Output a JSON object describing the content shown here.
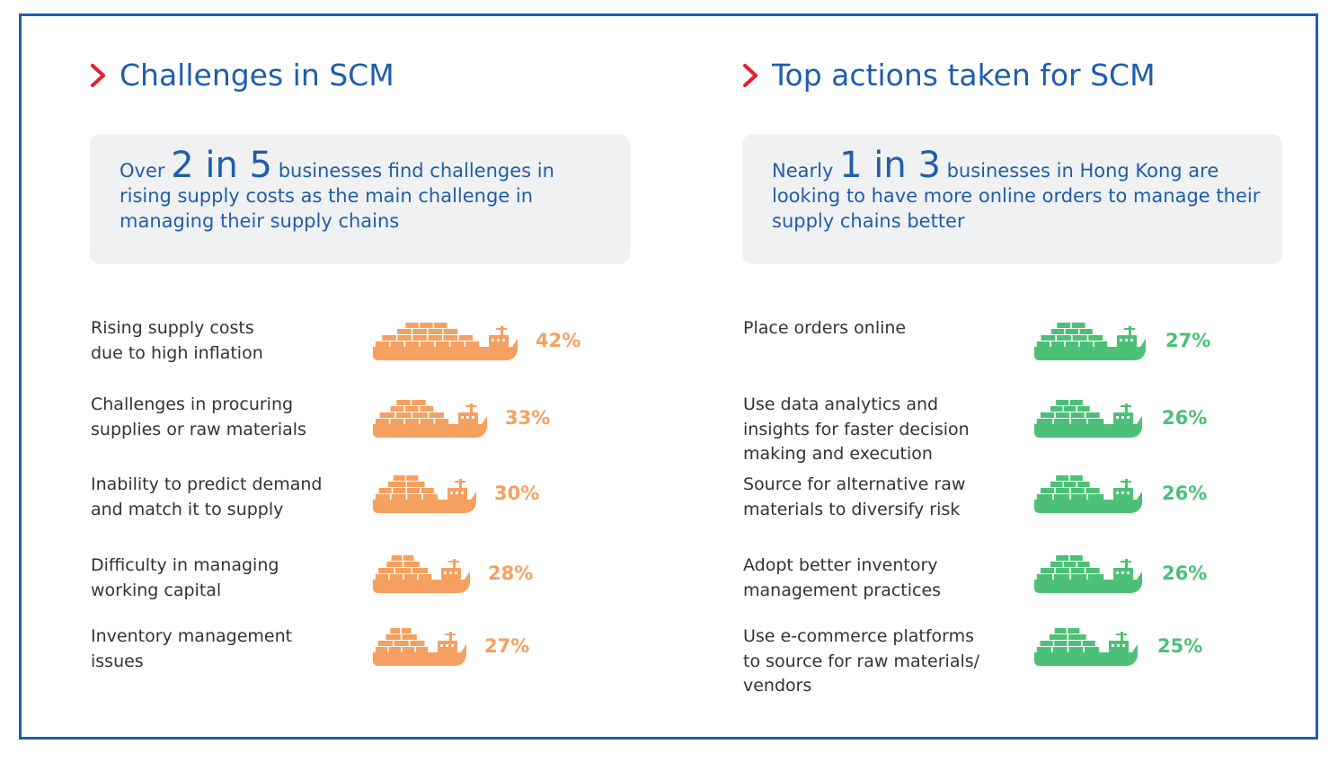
{
  "colors": {
    "accent": "#1e5eac",
    "chevron": "#e0202e",
    "orange": "#f5a060",
    "green": "#4cc077",
    "callout_bg": "#f0f1f2"
  },
  "left": {
    "title": "Challenges in SCM",
    "callout": {
      "pre": "Over",
      "big": "2 in 5",
      "post": "businesses find challenges in rising supply costs as the main challenge in managing their supply chains"
    }
  },
  "right": {
    "title": "Top actions taken for SCM",
    "callout": {
      "pre": "Nearly",
      "big": "1 in 3",
      "post": "businesses in Hong Kong are looking to have more online orders to manage their supply chains better"
    }
  },
  "chart_data": [
    {
      "type": "bar",
      "title": "Challenges in SCM",
      "categories": [
        [
          "Rising supply costs",
          "due to high inflation"
        ],
        [
          "Challenges in procuring",
          "supplies or raw materials"
        ],
        [
          "Inability to predict demand",
          "and match it to supply"
        ],
        [
          "Difficulty in managing",
          "working capital"
        ],
        [
          "Inventory management",
          "issues"
        ]
      ],
      "values": [
        42,
        33,
        30,
        28,
        27
      ],
      "value_labels": [
        "42%",
        "33%",
        "30%",
        "28%",
        "27%"
      ],
      "unit": "%",
      "color": "#f5a060"
    },
    {
      "type": "bar",
      "title": "Top actions taken for SCM",
      "categories": [
        [
          "Place orders online"
        ],
        [
          "Use data analytics and",
          "insights for faster decision",
          "making and execution"
        ],
        [
          "Source for alternative raw",
          "materials to diversify risk"
        ],
        [
          "Adopt better inventory",
          "management practices"
        ],
        [
          "Use e-commerce platforms",
          "to source for raw materials/",
          "vendors"
        ]
      ],
      "values": [
        27,
        26,
        26,
        26,
        25
      ],
      "value_labels": [
        "27%",
        "26%",
        "26%",
        "26%",
        "25%"
      ],
      "unit": "%",
      "color": "#4cc077"
    }
  ]
}
